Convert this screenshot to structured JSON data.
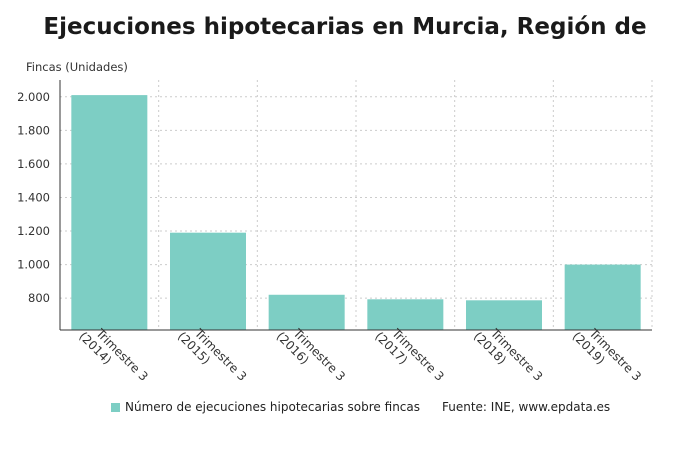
{
  "title": "Ejecuciones hipotecarias en Murcia, Región de",
  "ylabel": "Fincas (Unidades)",
  "colors": {
    "bar": "#7dcec4",
    "grid": "#cccccc",
    "axis": "#333333"
  },
  "chart_data": {
    "type": "bar",
    "categories": [
      "Trimestre 3 (2014)",
      "Trimestre 3 (2015)",
      "Trimestre 3 (2016)",
      "Trimestre 3 (2017)",
      "Trimestre 3 (2018)",
      "Trimestre 3 (2019)"
    ],
    "category_labels": [
      [
        "Trimestre 3",
        "(2014)"
      ],
      [
        "Trimestre 3",
        "(2015)"
      ],
      [
        "Trimestre 3",
        "(2016)"
      ],
      [
        "Trimestre 3",
        "(2017)"
      ],
      [
        "Trimestre 3",
        "(2018)"
      ],
      [
        "Trimestre 3",
        "(2019)"
      ]
    ],
    "series": [
      {
        "name": "Número de ejecuciones hipotecarias sobre fincas",
        "values": [
          2010,
          1190,
          820,
          793,
          787,
          1000
        ]
      }
    ],
    "yticks": [
      800,
      1000,
      1200,
      1400,
      1600,
      1800,
      2000
    ],
    "ytick_labels": [
      "800",
      "1.000",
      "1.200",
      "1.400",
      "1.600",
      "1.800",
      "2.000"
    ],
    "ylim": [
      610,
      2100
    ],
    "grid": true,
    "legend_position": "bottom"
  },
  "legend": {
    "label": "Número de ejecuciones hipotecarias sobre fincas"
  },
  "source": "Fuente: INE, www.epdata.es"
}
